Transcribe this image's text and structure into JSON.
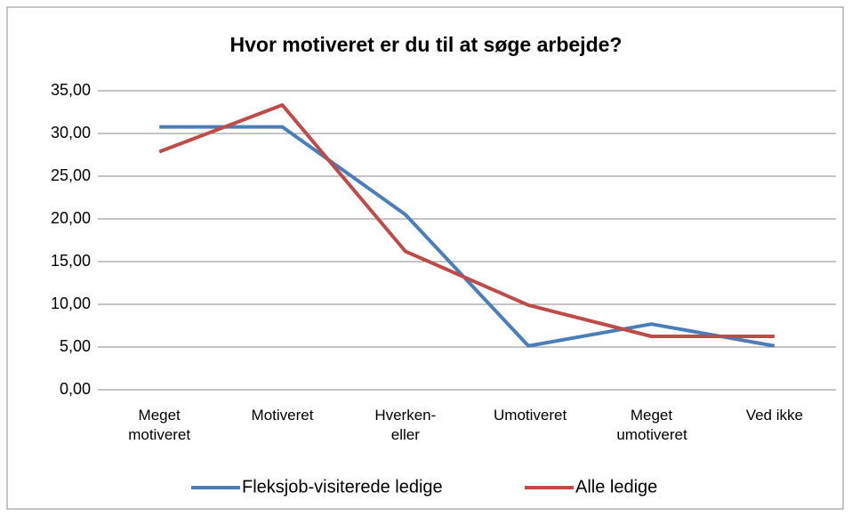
{
  "chart_data": {
    "type": "line",
    "title": "Hvor motiveret er du til at søge arbejde?",
    "categories": [
      "Meget motiveret",
      "Motiveret",
      "Hverken-eller",
      "Umotiveret",
      "Meget umotiveret",
      "Ved ikke"
    ],
    "series": [
      {
        "name": "Fleksjob-visiterede ledige",
        "color": "#4a7ebb",
        "values": [
          30.77,
          30.77,
          20.51,
          5.13,
          7.69,
          5.13
        ]
      },
      {
        "name": "Alle ledige",
        "color": "#be4b48",
        "values": [
          27.87,
          33.33,
          16.2,
          9.9,
          6.25,
          6.25
        ]
      }
    ],
    "ylim": [
      0,
      35
    ],
    "yticks": [
      {
        "value": 0,
        "label": "0,00"
      },
      {
        "value": 5,
        "label": "5,00"
      },
      {
        "value": 10,
        "label": "10,00"
      },
      {
        "value": 15,
        "label": "15,00"
      },
      {
        "value": 20,
        "label": "20,00"
      },
      {
        "value": 25,
        "label": "25,00"
      },
      {
        "value": 30,
        "label": "30,00"
      },
      {
        "value": 35,
        "label": "35,00"
      }
    ],
    "grid": true,
    "legend": "bottom"
  }
}
